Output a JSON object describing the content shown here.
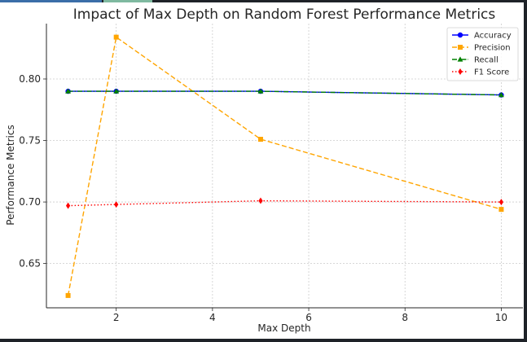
{
  "chart_data": {
    "type": "line",
    "title": "Impact of Max Depth on Random Forest Performance Metrics",
    "xlabel": "Max Depth",
    "ylabel": "Performance Metrics",
    "x": [
      1,
      2,
      5,
      10
    ],
    "xlim": [
      0.55,
      10.45
    ],
    "ylim": [
      0.614,
      0.845
    ],
    "xticks": [
      2,
      4,
      6,
      8,
      10
    ],
    "yticks": [
      0.65,
      0.7,
      0.75,
      0.8
    ],
    "xtick_labels": [
      "2",
      "4",
      "6",
      "8",
      "10"
    ],
    "ytick_labels": [
      "0.65",
      "0.70",
      "0.75",
      "0.80"
    ],
    "grid": true,
    "legend_placement": "top-right",
    "series": [
      {
        "name": "Accuracy",
        "values": [
          0.79,
          0.79,
          0.79,
          0.787
        ],
        "color": "#0000ff",
        "marker": "circle",
        "linestyle": "solid"
      },
      {
        "name": "Precision",
        "values": [
          0.624,
          0.834,
          0.751,
          0.694
        ],
        "color": "#ffa500",
        "marker": "square",
        "linestyle": "dashed"
      },
      {
        "name": "Recall",
        "values": [
          0.79,
          0.79,
          0.79,
          0.787
        ],
        "color": "#008000",
        "marker": "triangle",
        "linestyle": "dashdot"
      },
      {
        "name": "F1 Score",
        "values": [
          0.697,
          0.698,
          0.701,
          0.7
        ],
        "color": "#ff0000",
        "marker": "diamond",
        "linestyle": "dotted"
      }
    ]
  }
}
